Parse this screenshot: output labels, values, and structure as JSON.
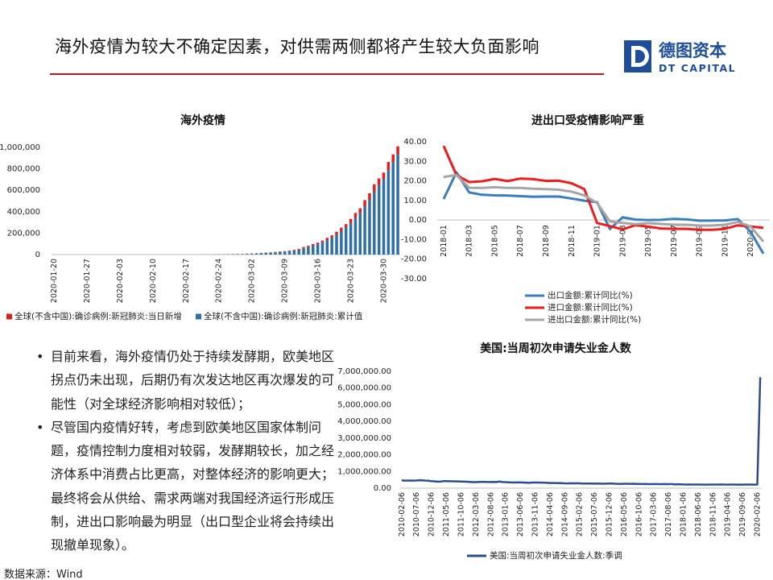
{
  "header": {
    "title": "海外疫情为较大不确定因素，对供需两侧都将产生较大负面影响"
  },
  "logo": {
    "name": "德图资本",
    "subtitle": "DT CAPITAL"
  },
  "chart_data": [
    {
      "type": "bar",
      "stacked": true,
      "title": "海外疫情",
      "categories": [
        "2020-01-20",
        null,
        null,
        null,
        null,
        null,
        null,
        "2020-01-27",
        null,
        null,
        null,
        null,
        null,
        null,
        "2020-02-03",
        null,
        null,
        null,
        null,
        null,
        null,
        "2020-02-10",
        null,
        null,
        null,
        null,
        null,
        null,
        "2020-02-17",
        null,
        null,
        null,
        null,
        null,
        null,
        "2020-02-24",
        null,
        null,
        null,
        null,
        null,
        null,
        "2020-03-02",
        null,
        null,
        null,
        null,
        null,
        null,
        "2020-03-09",
        null,
        null,
        null,
        null,
        null,
        null,
        "2020-03-16",
        null,
        null,
        null,
        null,
        null,
        null,
        "2020-03-23",
        null,
        null,
        null,
        null,
        null,
        null,
        "2020-03-30",
        null,
        null,
        null
      ],
      "series": [
        {
          "name": "全球(不含中国):确诊病例:新冠肺炎:当日新增",
          "color": "#e0201b",
          "values": [
            5,
            3,
            2,
            5,
            5,
            10,
            10,
            10,
            10,
            10,
            20,
            20,
            20,
            20,
            20,
            20,
            30,
            20,
            20,
            20,
            30,
            20,
            30,
            20,
            60,
            40,
            40,
            40,
            40,
            80,
            70,
            80,
            170,
            200,
            300,
            500,
            400,
            500,
            700,
            700,
            900,
            1700,
            1700,
            1800,
            2300,
            2800,
            2500,
            3500,
            4000,
            3300,
            4100,
            5800,
            7000,
            12000,
            12200,
            14100,
            13400,
            16600,
            21000,
            22000,
            28000,
            33000,
            33000,
            41000,
            48000,
            46000,
            61000,
            63000,
            73000,
            64000,
            59000,
            79000,
            75000,
            75000
          ]
        },
        {
          "name": "全球(不含中国):确诊病例:新冠肺炎:累计值",
          "color": "#2e6fa8",
          "values": [
            5,
            8,
            10,
            15,
            20,
            30,
            40,
            50,
            60,
            70,
            90,
            110,
            130,
            150,
            170,
            190,
            220,
            240,
            260,
            280,
            310,
            330,
            360,
            380,
            440,
            480,
            520,
            560,
            600,
            680,
            750,
            830,
            1000,
            1200,
            1500,
            2000,
            2400,
            2900,
            3600,
            4300,
            5200,
            6900,
            8600,
            10400,
            12700,
            15500,
            18000,
            21500,
            25500,
            28800,
            32900,
            38700,
            45700,
            57700,
            69900,
            84000,
            97400,
            114000,
            135000,
            157000,
            185000,
            218000,
            251000,
            292000,
            340000,
            386000,
            447000,
            510000,
            583000,
            647000,
            706000,
            785000,
            860000,
            935000
          ]
        }
      ],
      "ylim": [
        0,
        1000000
      ],
      "yticks": [
        0,
        {
          "value": 200000,
          "label": "200,000"
        },
        {
          "value": 400000,
          "label": "400,000"
        },
        {
          "value": 600000,
          "label": "600,000"
        },
        {
          "value": 800000,
          "label": "800,000"
        },
        {
          "value": 1000000,
          "label": "1,000,000"
        }
      ],
      "grid": false,
      "legend": "bottom"
    },
    {
      "type": "line",
      "title": "进出口受疫情影响严重",
      "categories": [
        "2018-01",
        null,
        "2018-03",
        null,
        "2018-05",
        null,
        "2018-07",
        null,
        "2018-09",
        null,
        "2018-11",
        null,
        "2019-01",
        null,
        "2019-03",
        null,
        "2019-05",
        null,
        "2019-07",
        null,
        "2019-09",
        null,
        "2019-11",
        null,
        "2020-01",
        null
      ],
      "series": [
        {
          "name": "出口金额:累计同比(%)",
          "color": "#3b7dbc",
          "values": [
            10.7,
            24.4,
            14.1,
            12.9,
            12.6,
            12.5,
            12.2,
            11.9,
            12.0,
            12.0,
            11.0,
            9.9,
            9.1,
            -4.6,
            1.4,
            0.2,
            0.0,
            0.1,
            0.6,
            0.3,
            -0.3,
            -0.3,
            -0.2,
            0.5,
            -6.0,
            -17.2
          ]
        },
        {
          "name": "进口金额:累计同比(%)",
          "color": "#ee1c1c",
          "values": [
            37.9,
            23.0,
            19.4,
            19.8,
            21.0,
            19.9,
            21.2,
            20.9,
            20.0,
            20.1,
            18.8,
            15.8,
            -1.5,
            -3.1,
            -4.8,
            -2.6,
            -3.4,
            -4.3,
            -4.5,
            -4.5,
            -5.0,
            -5.0,
            -4.5,
            -2.7,
            -3.3,
            -4.0
          ]
        },
        {
          "name": "进出口金额:累计同比(%)",
          "color": "#a5a5a5",
          "values": [
            22.0,
            23.0,
            16.5,
            16.4,
            16.8,
            16.4,
            16.4,
            16.0,
            15.8,
            15.5,
            14.5,
            12.6,
            8.7,
            -0.7,
            -1.5,
            -2.1,
            -1.6,
            -2.0,
            -2.4,
            -2.4,
            -2.8,
            -2.8,
            -2.4,
            -1.0,
            -3.3,
            -11.0
          ]
        }
      ],
      "ylim": [
        -30,
        40
      ],
      "yticks": [
        {
          "value": -30,
          "label": "-30.00"
        },
        {
          "value": -20,
          "label": "-20.00"
        },
        {
          "value": -10,
          "label": "-10.00"
        },
        {
          "value": 0,
          "label": "0.00"
        },
        {
          "value": 10,
          "label": "10.00"
        },
        {
          "value": 20,
          "label": "20.00"
        },
        {
          "value": 30,
          "label": "30.00"
        },
        {
          "value": 40,
          "label": "40.00"
        }
      ],
      "grid": false,
      "legend": "bottom"
    },
    {
      "type": "line",
      "title": "美国:当周初次申请失业金人数",
      "categories": [
        "2010-02-06",
        null,
        null,
        null,
        null,
        "2010-07-06",
        null,
        null,
        null,
        null,
        "2010-12-06",
        null,
        null,
        null,
        null,
        "2011-05-06",
        null,
        null,
        null,
        null,
        "2011-10-06",
        null,
        null,
        null,
        null,
        "2012-03-06",
        null,
        null,
        null,
        null,
        "2012-08-06",
        null,
        null,
        null,
        null,
        "2013-01-06",
        null,
        null,
        null,
        null,
        "2013-06-06",
        null,
        null,
        null,
        null,
        "2013-11-06",
        null,
        null,
        null,
        null,
        "2014-04-06",
        null,
        null,
        null,
        null,
        "2014-09-06",
        null,
        null,
        null,
        null,
        "2015-02-06",
        null,
        null,
        null,
        null,
        "2015-07-06",
        null,
        null,
        null,
        null,
        "2015-12-06",
        null,
        null,
        null,
        null,
        "2016-05-06",
        null,
        null,
        null,
        null,
        "2016-10-06",
        null,
        null,
        null,
        null,
        "2017-03-06",
        null,
        null,
        null,
        null,
        "2017-08-06",
        null,
        null,
        null,
        null,
        "2018-01-06",
        null,
        null,
        null,
        null,
        "2018-06-06",
        null,
        null,
        null,
        null,
        "2018-11-06",
        null,
        null,
        null,
        null,
        "2019-04-06",
        null,
        null,
        null,
        null,
        "2019-09-06",
        null,
        null,
        null,
        null,
        "2020-02-06",
        null
      ],
      "series": [
        {
          "name": "美国:当周初次申请失业金人数:季调",
          "color": "#2d4e8c",
          "values": [
            470000,
            455000,
            450000,
            460000,
            455000,
            460000,
            475000,
            470000,
            455000,
            445000,
            425000,
            410000,
            395000,
            390000,
            420000,
            420000,
            415000,
            410000,
            410000,
            405000,
            400000,
            395000,
            385000,
            375000,
            365000,
            365000,
            375000,
            375000,
            380000,
            370000,
            370000,
            375000,
            370000,
            400000,
            370000,
            360000,
            350000,
            345000,
            340000,
            350000,
            345000,
            340000,
            330000,
            320000,
            340000,
            335000,
            340000,
            330000,
            330000,
            320000,
            305000,
            310000,
            310000,
            300000,
            300000,
            290000,
            285000,
            295000,
            290000,
            290000,
            290000,
            280000,
            275000,
            280000,
            280000,
            270000,
            275000,
            270000,
            265000,
            270000,
            275000,
            280000,
            265000,
            260000,
            255000,
            265000,
            265000,
            260000,
            265000,
            255000,
            255000,
            250000,
            255000,
            245000,
            240000,
            245000,
            245000,
            240000,
            240000,
            245000,
            240000,
            250000,
            230000,
            235000,
            230000,
            225000,
            220000,
            225000,
            220000,
            220000,
            220000,
            215000,
            210000,
            210000,
            215000,
            220000,
            220000,
            215000,
            225000,
            215000,
            210000,
            215000,
            220000,
            210000,
            215000,
            210000,
            215000,
            220000,
            220000,
            210000,
            215000,
            6648000
          ]
        }
      ],
      "ylim": [
        0,
        7000000
      ],
      "yticks": [
        {
          "value": 0,
          "label": "0.00"
        },
        {
          "value": 1000000,
          "label": "1,000,000.00"
        },
        {
          "value": 2000000,
          "label": "2,000,000.00"
        },
        {
          "value": 3000000,
          "label": "3,000,000.00"
        },
        {
          "value": 4000000,
          "label": "4,000,000.00"
        },
        {
          "value": 5000000,
          "label": "5,000,000.00"
        },
        {
          "value": 6000000,
          "label": "6,000,000.00"
        },
        {
          "value": 7000000,
          "label": "7,000,000.00"
        }
      ],
      "grid": false,
      "legend": "bottom"
    }
  ],
  "bullets": [
    "目前来看，海外疫情仍处于持续发酵期，欧美地区拐点仍未出现，后期仍有次发达地区再次爆发的可能性（对全球经济影响相对较低）；",
    "尽管国内疫情好转，考虑到欧美地区国家体制问题，疫情控制力度相对较弱，发酵期较长，加之经济体系中消费占比更高，对整体经济的影响更大；最终将会从供给、需求两端对我国经济运行形成压制，进出口影响最为明显（出口型企业将会持续出现撤单现象）。"
  ],
  "source": "数据来源：Wind"
}
